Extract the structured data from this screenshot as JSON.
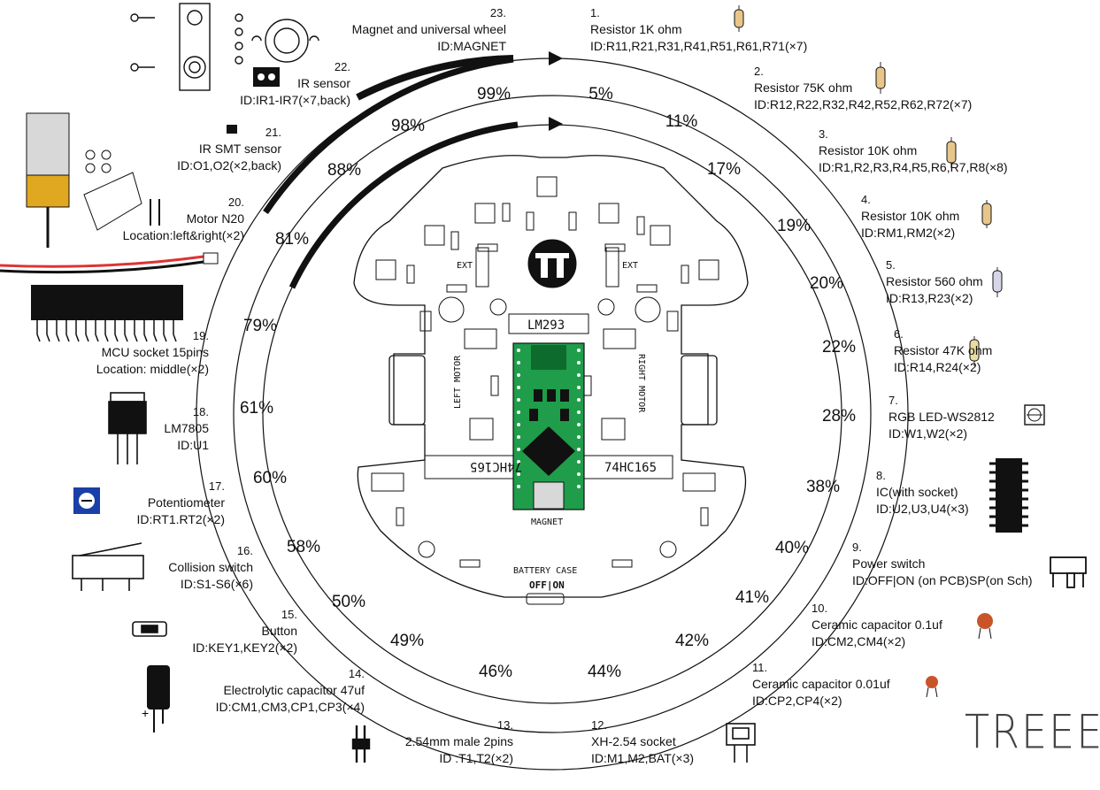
{
  "brand": "TREEE",
  "percentages": {
    "outer": [
      "5%",
      "11%",
      "17%",
      "19%",
      "20%",
      "22%",
      "28%",
      "38%",
      "40%",
      "41%",
      "42%",
      "44%",
      "46%",
      "49%",
      "50%",
      "58%",
      "60%",
      "61%",
      "79%",
      "81%",
      "88%",
      "98%",
      "99%"
    ]
  },
  "pcb": {
    "chip_left": "74HC165",
    "chip_right": "74HC165",
    "regulator": "LM293",
    "magnet": "MAGNET",
    "battery": "BATTERY CASE",
    "power": "OFF|ON",
    "left_motor": "LEFT MOTOR",
    "right_motor": "RIGHT MOTOR",
    "ext_left": "EXT",
    "ext_right": "EXT"
  },
  "components": [
    {
      "num": "1.",
      "name": "Resistor 1K ohm",
      "id": "ID:R11,R21,R31,R41,R51,R61,R71(×7)"
    },
    {
      "num": "2.",
      "name": "Resistor 75K ohm",
      "id": "ID:R12,R22,R32,R42,R52,R62,R72(×7)"
    },
    {
      "num": "3.",
      "name": "Resistor 10K ohm",
      "id": "ID:R1,R2,R3,R4,R5,R6,R7,R8(×8)"
    },
    {
      "num": "4.",
      "name": "Resistor 10K ohm",
      "id": "ID:RM1,RM2(×2)"
    },
    {
      "num": "5.",
      "name": "Resistor 560 ohm",
      "id": "ID:R13,R23(×2)"
    },
    {
      "num": "6.",
      "name": "Resistor 47K ohm",
      "id": "ID:R14,R24(×2)"
    },
    {
      "num": "7.",
      "name": "RGB LED-WS2812",
      "id": "ID:W1,W2(×2)"
    },
    {
      "num": "8.",
      "name": "IC(with socket)",
      "id": "ID:U2,U3,U4(×3)"
    },
    {
      "num": "9.",
      "name": "Power switch",
      "id": "ID:OFF|ON (on PCB)SP(on Sch)"
    },
    {
      "num": "10.",
      "name": "Ceramic capacitor 0.1uf",
      "id": "ID:CM2,CM4(×2)"
    },
    {
      "num": "11.",
      "name": "Ceramic capacitor 0.01uf",
      "id": "ID:CP2,CP4(×2)"
    },
    {
      "num": "12.",
      "name": "XH-2.54 socket",
      "id": "ID:M1,M2,BAT(×3)"
    },
    {
      "num": "13.",
      "name": "2.54mm male 2pins",
      "id": "ID :T1,T2(×2)"
    },
    {
      "num": "14.",
      "name": "Electrolytic capacitor 47uf",
      "id": "ID:CM1,CM3,CP1,CP3(×4)"
    },
    {
      "num": "15.",
      "name": "Button",
      "id": "ID:KEY1,KEY2(×2)"
    },
    {
      "num": "16.",
      "name": "Collision switch",
      "id": "ID:S1-S6(×6)"
    },
    {
      "num": "17.",
      "name": "Potentiometer",
      "id": "ID:RT1.RT2(×2)"
    },
    {
      "num": "18.",
      "name": "LM7805",
      "id": "ID:U1"
    },
    {
      "num": "19.",
      "name": "MCU socket 15pins",
      "id": "Location: middle(×2)"
    },
    {
      "num": "20.",
      "name": "Motor N20",
      "id": "Location:left&right(×2)"
    },
    {
      "num": "21.",
      "name": "IR SMT sensor",
      "id": "ID:O1,O2(×2,back)"
    },
    {
      "num": "22.",
      "name": "IR sensor",
      "id": "ID:IR1-IR7(×7,back)"
    },
    {
      "num": "23.",
      "name": "Magnet and universal wheel",
      "id": "ID:MAGNET"
    }
  ],
  "colors": {
    "pcb_green": "#1f9d4a",
    "resistor_body": "#e8c68a",
    "cap_ceramic": "#c9542a",
    "pot_blue": "#1b3fa8"
  }
}
